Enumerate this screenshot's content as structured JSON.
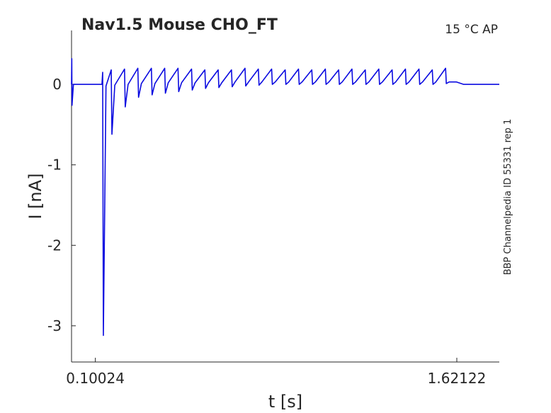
{
  "chart_data": {
    "type": "line",
    "title": "Nav1.5  Mouse  CHO_FT",
    "annotation": "15 °C  AP",
    "side_note": "BBP Channelpedia ID 55331 rep 1",
    "xlabel": "t [s]",
    "ylabel": "I [nA]",
    "color": "#0a0ae0",
    "xlim": [
      0,
      1.8
    ],
    "ylim": [
      -3.45,
      0.67
    ],
    "xticks": [
      0.10024,
      1.62122
    ],
    "yticks": [
      -3,
      -2,
      -1,
      0
    ],
    "grid": false,
    "x": [
      0,
      0.001,
      0.002,
      0.008,
      0.128,
      0.131,
      0.134,
      0.145,
      0.167,
      0.17,
      0.182,
      0.223,
      0.226,
      0.238,
      0.279,
      0.282,
      0.294,
      0.336,
      0.339,
      0.351,
      0.392,
      0.395,
      0.407,
      0.448,
      0.451,
      0.463,
      0.505,
      0.508,
      0.52,
      0.561,
      0.564,
      0.576,
      0.617,
      0.62,
      0.632,
      0.673,
      0.676,
      0.688,
      0.73,
      0.733,
      0.745,
      0.786,
      0.789,
      0.801,
      0.842,
      0.845,
      0.857,
      0.899,
      0.902,
      0.914,
      0.955,
      0.958,
      0.97,
      1.011,
      1.014,
      1.026,
      1.068,
      1.071,
      1.083,
      1.124,
      1.127,
      1.139,
      1.18,
      1.183,
      1.195,
      1.236,
      1.239,
      1.251,
      1.293,
      1.296,
      1.308,
      1.349,
      1.352,
      1.364,
      1.405,
      1.408,
      1.42,
      1.462,
      1.465,
      1.477,
      1.518,
      1.521,
      1.533,
      1.574,
      1.577,
      1.589,
      1.6,
      1.62,
      1.65,
      1.8
    ],
    "values": [
      0,
      0.32,
      -0.26,
      0,
      0,
      0.15,
      -3.12,
      -0.02,
      0.18,
      -0.62,
      -0.01,
      0.19,
      -0.28,
      0,
      0.2,
      -0.16,
      0.01,
      0.2,
      -0.13,
      0.01,
      0.2,
      -0.11,
      0.02,
      0.2,
      -0.09,
      0.02,
      0.19,
      -0.07,
      0.02,
      0.18,
      -0.05,
      0.02,
      0.18,
      -0.04,
      0.02,
      0.18,
      -0.03,
      0.03,
      0.2,
      -0.02,
      0.03,
      0.19,
      -0.01,
      0.03,
      0.19,
      0,
      0.03,
      0.18,
      0,
      0.03,
      0.19,
      0,
      0.03,
      0.18,
      0,
      0.03,
      0.19,
      0,
      0.03,
      0.18,
      0,
      0.03,
      0.19,
      0,
      0.03,
      0.18,
      0,
      0.03,
      0.19,
      0,
      0.03,
      0.18,
      0,
      0.03,
      0.19,
      0,
      0.03,
      0.19,
      0,
      0.03,
      0.18,
      0,
      0.03,
      0.2,
      0.01,
      0.03,
      0.03,
      0.03,
      0,
      0
    ]
  }
}
